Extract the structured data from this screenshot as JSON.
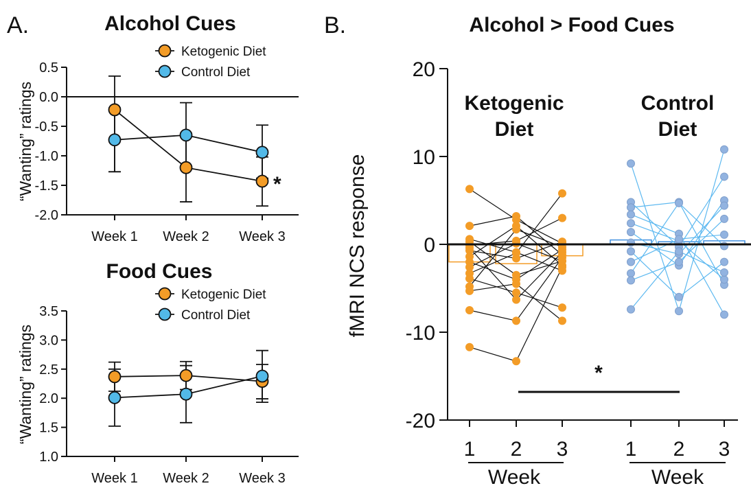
{
  "colors": {
    "ketogenic": "#f39c27",
    "control": "#52b9e8",
    "control_points": "#92b3e0",
    "control_lines": "#5cb8f0",
    "black": "#111111"
  },
  "panel_a": {
    "letter": "A."
  },
  "panel_b": {
    "letter": "B.",
    "title": "Alcohol > Food Cues"
  },
  "chart_data": [
    {
      "type": "line",
      "title": "Alcohol Cues",
      "ylabel": "“Wanting” ratings",
      "xlabel": "",
      "categories": [
        "Week 1",
        "Week 2",
        "Week 3"
      ],
      "ylim": [
        -2.0,
        0.5
      ],
      "yticks": [
        "0.5",
        "0.0",
        "-0.5",
        "-1.0",
        "-1.5",
        "-2.0"
      ],
      "reference_line": 0,
      "series": [
        {
          "name": "Ketogenic Diet",
          "color": "#f39c27",
          "values": [
            -0.22,
            -1.2,
            -1.43
          ],
          "err_low": [
            -1.27,
            -1.78,
            -1.85
          ],
          "err_high": [
            0.35,
            -0.62,
            -1.02
          ]
        },
        {
          "name": "Control Diet",
          "color": "#52b9e8",
          "values": [
            -0.73,
            -0.65,
            -0.94
          ],
          "err_low": [
            -1.27,
            -1.2,
            -1.38
          ],
          "err_high": [
            -0.19,
            -0.1,
            -0.48
          ]
        }
      ],
      "annotation": "*",
      "legend_position": "top-right"
    },
    {
      "type": "line",
      "title": "Food Cues",
      "ylabel": "“Wanting” ratings",
      "xlabel": "",
      "categories": [
        "Week 1",
        "Week 2",
        "Week 3"
      ],
      "ylim": [
        1.0,
        3.5
      ],
      "yticks": [
        "3.5",
        "3.0",
        "2.5",
        "2.0",
        "1.5",
        "1.0"
      ],
      "series": [
        {
          "name": "Ketogenic Diet",
          "color": "#f39c27",
          "values": [
            2.37,
            2.39,
            2.29
          ],
          "err_low": [
            2.12,
            2.15,
            1.99
          ],
          "err_high": [
            2.62,
            2.63,
            2.58
          ]
        },
        {
          "name": "Control Diet",
          "color": "#52b9e8",
          "values": [
            2.01,
            2.07,
            2.38
          ],
          "err_low": [
            1.52,
            1.58,
            1.93
          ],
          "err_high": [
            2.5,
            2.56,
            2.82
          ]
        }
      ],
      "legend_position": "top-right"
    },
    {
      "type": "scatter",
      "title": "Alcohol > Food Cues",
      "ylabel": "fMRI NCS response",
      "xlabel": "Week",
      "ylim": [
        -20,
        20
      ],
      "yticks": [
        "20",
        "10",
        "0",
        "-10",
        "-20"
      ],
      "groups": [
        {
          "name_line1": "Ketogenic",
          "name_line2": "Diet",
          "color": "#f39c27",
          "weeks": [
            "1",
            "2",
            "3"
          ],
          "means": [
            -2.0,
            -2.2,
            -1.3
          ],
          "subjects": [
            [
              6.3,
              2.8,
              0.1
            ],
            [
              2.1,
              3.2,
              -1.2
            ],
            [
              0.6,
              -0.9,
              -3.0
            ],
            [
              -0.1,
              0.4,
              3.0
            ],
            [
              -0.7,
              -1.6,
              0.3
            ],
            [
              -1.4,
              2.1,
              -2.4
            ],
            [
              -2.0,
              -4.0,
              -0.6
            ],
            [
              -2.6,
              0.1,
              -1.9
            ],
            [
              -3.3,
              -1.0,
              5.8
            ],
            [
              -3.9,
              -5.5,
              -7.2
            ],
            [
              -4.8,
              1.7,
              -0.3
            ],
            [
              -5.3,
              -4.5,
              -8.7
            ],
            [
              -7.5,
              -8.7,
              -1.5
            ],
            [
              -11.7,
              -13.3,
              -2.6
            ],
            [
              -0.4,
              -6.3,
              -0.9
            ],
            [
              0.3,
              -3.5,
              -1.9
            ]
          ]
        },
        {
          "name_line1": "Control",
          "name_line2": "Diet",
          "color": "#92b3e0",
          "weeks": [
            "1",
            "2",
            "3"
          ],
          "means": [
            0.5,
            0.3,
            0.4
          ],
          "subjects": [
            [
              9.2,
              -7.6,
              10.8
            ],
            [
              4.8,
              -0.3,
              7.7
            ],
            [
              4.2,
              4.8,
              -4.6
            ],
            [
              3.4,
              1.2,
              -8.0
            ],
            [
              2.4,
              0.4,
              -4.0
            ],
            [
              1.4,
              -2.4,
              5.0
            ],
            [
              0.2,
              -1.1,
              4.4
            ],
            [
              -0.8,
              -6.0,
              -2.0
            ],
            [
              -2.0,
              0.6,
              1.1
            ],
            [
              -3.3,
              4.7,
              -0.2
            ],
            [
              -4.1,
              -2.0,
              2.9
            ],
            [
              -7.4,
              -0.8,
              -3.2
            ]
          ]
        }
      ],
      "significance": {
        "label": "*",
        "between": "Ketogenic Diet Week 2 vs Control Diet Week 2"
      }
    }
  ]
}
